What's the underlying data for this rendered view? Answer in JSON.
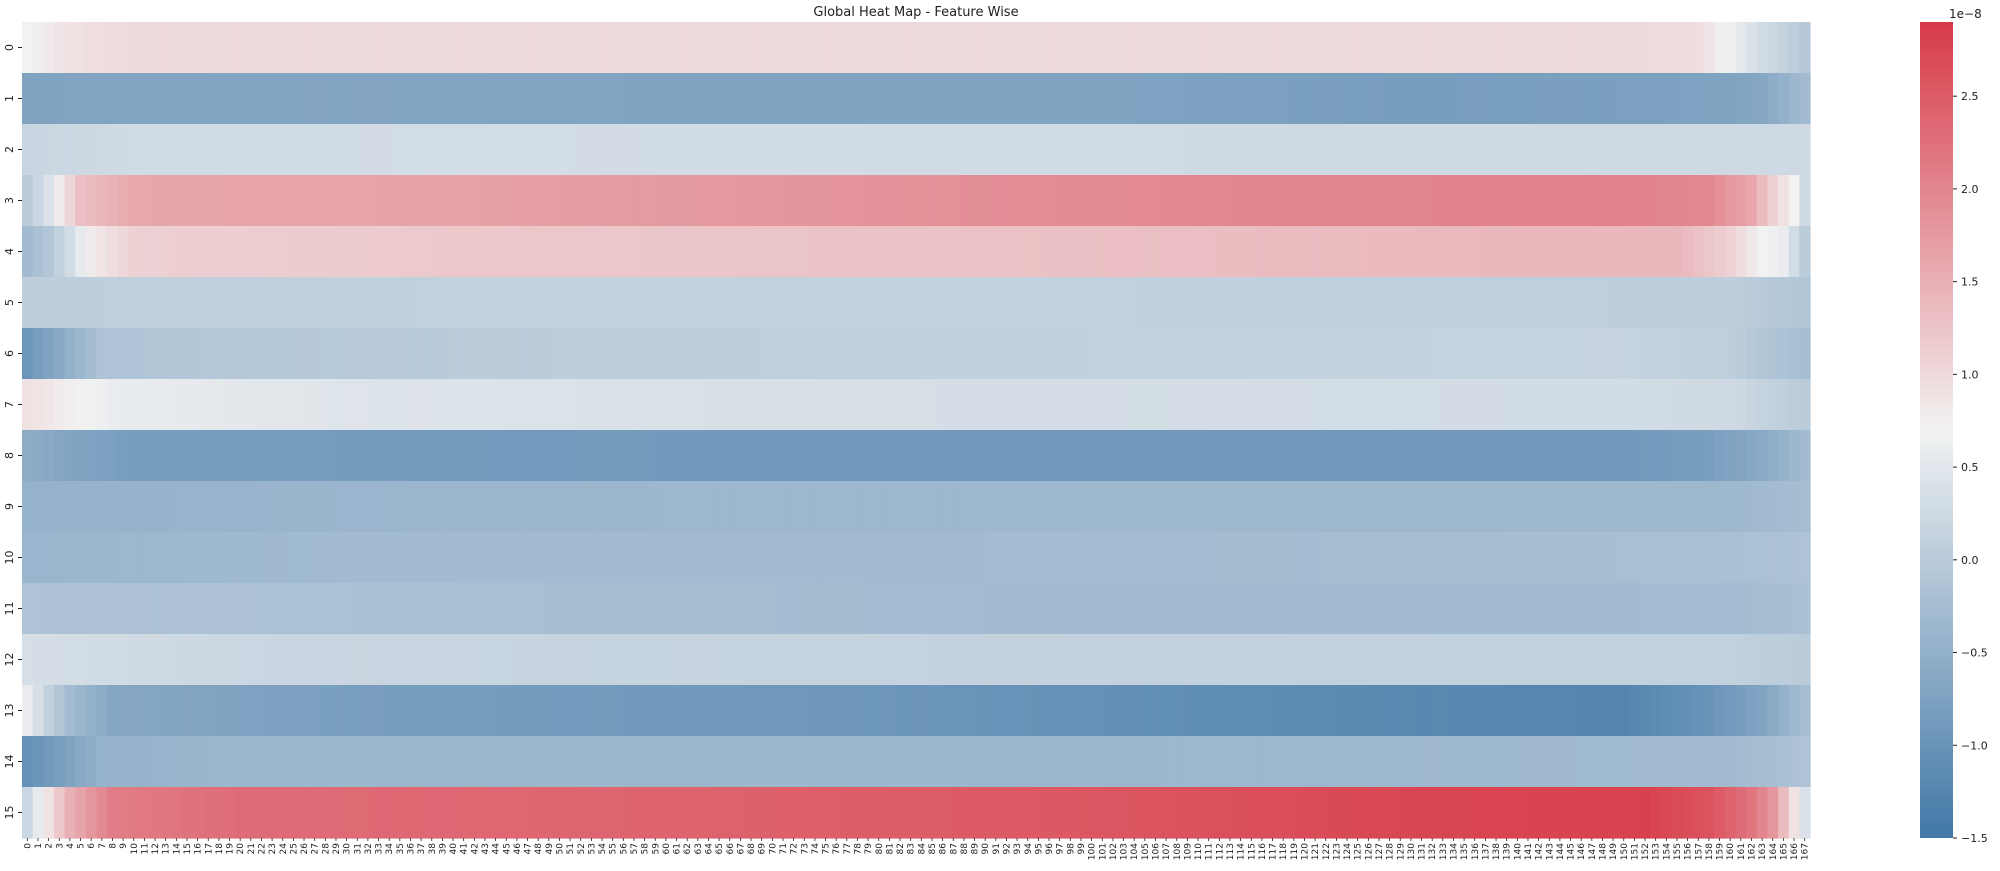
{
  "chart_data": {
    "type": "heatmap",
    "title": "Global Heat Map - Feature Wise",
    "xlabel": "",
    "ylabel": "",
    "rows": [
      "0",
      "1",
      "2",
      "3",
      "4",
      "5",
      "6",
      "7",
      "8",
      "9",
      "10",
      "11",
      "12",
      "13",
      "14",
      "15"
    ],
    "n_columns": 168,
    "x_tick_labels_from": 0,
    "x_tick_labels_to": 167,
    "colorbar": {
      "scale_label": "1e−8",
      "min": -1.5,
      "max": 2.9,
      "ticks": [
        -1.5,
        -1.0,
        -0.5,
        0.0,
        0.5,
        1.0,
        1.5,
        2.0,
        2.5
      ],
      "tick_labels": [
        "−1.5",
        "−1.0",
        "−0.5",
        "0.0",
        "0.5",
        "1.0",
        "1.5",
        "2.0",
        "2.5"
      ],
      "colormap": "diverging blue-white-red",
      "color_low": "#4178a7",
      "color_mid": "#f2f2f2",
      "color_high": "#d73a48"
    },
    "row_profiles_note_units": "values in units of 1e-8",
    "row_profiles": [
      {
        "row": "0",
        "points": [
          [
            0,
            0.7
          ],
          [
            4,
            0.9
          ],
          [
            10,
            1.0
          ],
          [
            150,
            1.0
          ],
          [
            157,
            0.95
          ],
          [
            160,
            0.65
          ],
          [
            163,
            0.3
          ],
          [
            167,
            -0.05
          ]
        ]
      },
      {
        "row": "1",
        "points": [
          [
            0,
            -0.72
          ],
          [
            30,
            -0.68
          ],
          [
            60,
            -0.72
          ],
          [
            100,
            -0.72
          ],
          [
            130,
            -0.82
          ],
          [
            150,
            -0.78
          ],
          [
            160,
            -0.72
          ],
          [
            163,
            -0.65
          ],
          [
            167,
            -0.3
          ]
        ]
      },
      {
        "row": "2",
        "points": [
          [
            0,
            0.18
          ],
          [
            10,
            0.28
          ],
          [
            40,
            0.32
          ],
          [
            100,
            0.28
          ],
          [
            167,
            0.25
          ]
        ]
      },
      {
        "row": "3",
        "points": [
          [
            0,
            0.0
          ],
          [
            2,
            0.4
          ],
          [
            3,
            0.8
          ],
          [
            5,
            1.3
          ],
          [
            10,
            1.6
          ],
          [
            40,
            1.65
          ],
          [
            80,
            1.85
          ],
          [
            120,
            2.0
          ],
          [
            150,
            2.05
          ],
          [
            158,
            1.95
          ],
          [
            162,
            1.6
          ],
          [
            164,
            1.1
          ],
          [
            166,
            0.7
          ],
          [
            167,
            0.25
          ]
        ]
      },
      {
        "row": "4",
        "points": [
          [
            0,
            -0.3
          ],
          [
            2,
            -0.1
          ],
          [
            4,
            0.3
          ],
          [
            6,
            0.8
          ],
          [
            10,
            1.1
          ],
          [
            40,
            1.2
          ],
          [
            100,
            1.3
          ],
          [
            140,
            1.4
          ],
          [
            155,
            1.4
          ],
          [
            160,
            1.1
          ],
          [
            163,
            0.7
          ],
          [
            165,
            0.6
          ],
          [
            167,
            0.0
          ]
        ]
      },
      {
        "row": "5",
        "points": [
          [
            0,
            0.05
          ],
          [
            40,
            0.1
          ],
          [
            100,
            0.1
          ],
          [
            160,
            0.05
          ],
          [
            167,
            -0.1
          ]
        ]
      },
      {
        "row": "6",
        "points": [
          [
            0,
            -0.95
          ],
          [
            3,
            -0.6
          ],
          [
            7,
            -0.15
          ],
          [
            20,
            -0.05
          ],
          [
            60,
            0.05
          ],
          [
            120,
            0.12
          ],
          [
            150,
            0.15
          ],
          [
            160,
            0.05
          ],
          [
            167,
            -0.25
          ]
        ]
      },
      {
        "row": "7",
        "points": [
          [
            0,
            0.9
          ],
          [
            4,
            0.75
          ],
          [
            8,
            0.6
          ],
          [
            30,
            0.45
          ],
          [
            80,
            0.35
          ],
          [
            150,
            0.3
          ],
          [
            160,
            0.25
          ],
          [
            167,
            0.0
          ]
        ]
      },
      {
        "row": "8",
        "points": [
          [
            0,
            -0.55
          ],
          [
            4,
            -0.7
          ],
          [
            10,
            -0.82
          ],
          [
            60,
            -0.88
          ],
          [
            120,
            -0.92
          ],
          [
            150,
            -0.9
          ],
          [
            158,
            -0.8
          ],
          [
            163,
            -0.6
          ],
          [
            167,
            -0.3
          ]
        ]
      },
      {
        "row": "9",
        "points": [
          [
            0,
            -0.45
          ],
          [
            40,
            -0.38
          ],
          [
            100,
            -0.35
          ],
          [
            160,
            -0.35
          ],
          [
            167,
            -0.25
          ]
        ]
      },
      {
        "row": "10",
        "points": [
          [
            0,
            -0.4
          ],
          [
            30,
            -0.3
          ],
          [
            100,
            -0.28
          ],
          [
            160,
            -0.2
          ],
          [
            167,
            -0.15
          ]
        ]
      },
      {
        "row": "11",
        "points": [
          [
            0,
            -0.15
          ],
          [
            40,
            -0.2
          ],
          [
            100,
            -0.3
          ],
          [
            160,
            -0.28
          ],
          [
            167,
            -0.2
          ]
        ]
      },
      {
        "row": "12",
        "points": [
          [
            0,
            0.35
          ],
          [
            20,
            0.2
          ],
          [
            60,
            0.15
          ],
          [
            100,
            0.12
          ],
          [
            160,
            0.1
          ],
          [
            167,
            0.0
          ]
        ]
      },
      {
        "row": "13",
        "points": [
          [
            0,
            0.6
          ],
          [
            2,
            0.1
          ],
          [
            4,
            -0.3
          ],
          [
            8,
            -0.65
          ],
          [
            30,
            -0.8
          ],
          [
            80,
            -0.95
          ],
          [
            130,
            -1.2
          ],
          [
            150,
            -1.25
          ],
          [
            158,
            -1.0
          ],
          [
            163,
            -0.7
          ],
          [
            167,
            -0.25
          ]
        ]
      },
      {
        "row": "14",
        "points": [
          [
            0,
            -1.05
          ],
          [
            3,
            -0.8
          ],
          [
            7,
            -0.45
          ],
          [
            20,
            -0.38
          ],
          [
            100,
            -0.38
          ],
          [
            160,
            -0.3
          ],
          [
            167,
            -0.15
          ]
        ]
      },
      {
        "row": "15",
        "points": [
          [
            0,
            0.2
          ],
          [
            2,
            0.9
          ],
          [
            4,
            1.5
          ],
          [
            8,
            2.1
          ],
          [
            20,
            2.3
          ],
          [
            60,
            2.4
          ],
          [
            100,
            2.55
          ],
          [
            130,
            2.75
          ],
          [
            152,
            2.8
          ],
          [
            158,
            2.6
          ],
          [
            162,
            2.2
          ],
          [
            164,
            1.8
          ],
          [
            166,
            0.9
          ],
          [
            167,
            0.4
          ]
        ]
      }
    ]
  }
}
